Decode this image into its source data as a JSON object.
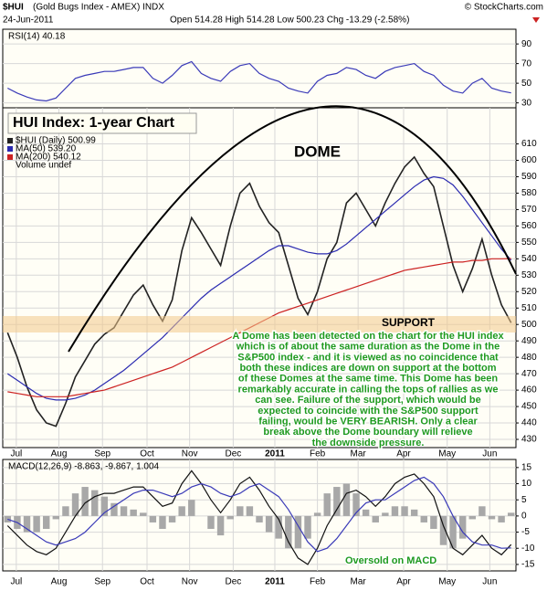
{
  "header": {
    "symbol": "$HUI",
    "name": "(Gold Bugs Index - AMEX) INDX",
    "date": "24-Jun-2011",
    "quote": "Open 514.28  High 514.28  Low 500.23  Chg -13.29 (-2.58%)",
    "credit": "© StockCharts.com"
  },
  "annotations": {
    "title": "HUI Index: 1-year Chart",
    "dome": "DOME",
    "support": "SUPPORT",
    "oversold": "Oversold on MACD",
    "text": [
      "A Dome has been detected on the chart for the HUI index",
      "which is of about the same duration as the Dome in the",
      "S&P500 index - and it is viewed as no coincidence that",
      "both these indices are down on support at the bottom",
      "of these Domes at the same time. This Dome has been",
      "remarkably accurate in calling the tops of rallies as we",
      "can see. Failure of the support, which would be",
      "expected to coincide with the S&P500 support",
      "failing, would be VERY BEARISH. Only a clear",
      "break above the Dome boundary will relieve",
      "the downside pressure."
    ]
  },
  "chart_data": [
    {
      "type": "line",
      "label": "RSI(14) 40.18",
      "xlim": [
        -0.5,
        52.5
      ],
      "ylim": [
        25,
        105
      ],
      "yticks": [
        30,
        50,
        70,
        90
      ],
      "grid": true,
      "series": [
        {
          "name": "RSI(14)",
          "color": "#3a3ab8",
          "values": [
            45,
            40,
            36,
            33,
            32,
            35,
            45,
            55,
            58,
            60,
            62,
            62,
            64,
            66,
            66,
            55,
            50,
            58,
            68,
            72,
            60,
            55,
            52,
            62,
            68,
            70,
            60,
            55,
            52,
            45,
            42,
            40,
            52,
            58,
            60,
            66,
            64,
            58,
            55,
            62,
            66,
            68,
            70,
            62,
            58,
            48,
            42,
            40,
            50,
            55,
            45,
            42,
            40.18
          ]
        }
      ]
    },
    {
      "type": "line",
      "xlim": [
        -0.5,
        52.5
      ],
      "ylim": [
        425,
        632
      ],
      "yticks": [
        430,
        440,
        450,
        460,
        470,
        480,
        490,
        500,
        510,
        520,
        530,
        540,
        550,
        560,
        570,
        580,
        590,
        600,
        610
      ],
      "grid": true,
      "xticks": [
        {
          "value": 0.9,
          "label": "Jul"
        },
        {
          "value": 5.3,
          "label": "Aug"
        },
        {
          "value": 9.8,
          "label": "Sep"
        },
        {
          "value": 14.4,
          "label": "Oct"
        },
        {
          "value": 18.8,
          "label": "Nov"
        },
        {
          "value": 23.3,
          "label": "Dec"
        },
        {
          "value": 27.6,
          "label": "2011"
        },
        {
          "value": 32,
          "label": "Feb"
        },
        {
          "value": 36.2,
          "label": "Mar"
        },
        {
          "value": 40.9,
          "label": "Apr"
        },
        {
          "value": 45.4,
          "label": "May"
        },
        {
          "value": 49.8,
          "label": "Jun"
        }
      ],
      "series": [
        {
          "name": "$HUI (Daily) 500.99",
          "color": "#222222",
          "values": [
            495,
            480,
            462,
            448,
            440,
            438,
            452,
            468,
            478,
            488,
            494,
            498,
            508,
            518,
            524,
            512,
            502,
            515,
            545,
            565,
            556,
            546,
            536,
            560,
            580,
            586,
            572,
            562,
            556,
            536,
            516,
            506,
            520,
            540,
            550,
            574,
            580,
            570,
            560,
            574,
            586,
            596,
            602,
            592,
            584,
            560,
            536,
            520,
            534,
            552,
            530,
            512,
            501
          ]
        },
        {
          "name": "MA(50) 539.20",
          "color": "#2a2ab0",
          "values": [
            470,
            466,
            462,
            458,
            455,
            454,
            454,
            455,
            457,
            460,
            464,
            468,
            472,
            477,
            482,
            487,
            492,
            498,
            504,
            510,
            516,
            521,
            525,
            529,
            533,
            537,
            541,
            545,
            548,
            548,
            546,
            544,
            543,
            543,
            545,
            549,
            554,
            559,
            564,
            569,
            574,
            579,
            584,
            588,
            590,
            589,
            585,
            578,
            570,
            562,
            554,
            546,
            539.2
          ]
        },
        {
          "name": "MA(200) 540.12",
          "color": "#cc2222",
          "values": [
            459,
            458,
            457,
            456,
            456,
            456,
            456,
            457,
            458,
            459,
            460,
            462,
            464,
            466,
            468,
            470,
            472,
            474,
            477,
            480,
            483,
            486,
            489,
            492,
            495,
            498,
            501,
            504,
            507,
            509,
            511,
            513,
            515,
            517,
            519,
            521,
            523,
            525,
            527,
            529,
            531,
            533,
            534,
            535,
            536,
            537,
            538,
            538,
            539,
            539,
            540,
            540,
            540.12
          ]
        }
      ],
      "legend_extra": "Volume undef"
    },
    {
      "type": "line",
      "label": "MACD(12,26,9) -8.863, -9.867, 1.004",
      "xlim": [
        -0.5,
        52.5
      ],
      "ylim": [
        -17,
        17.5
      ],
      "yticks": [
        15,
        10,
        5,
        0,
        -5,
        -10,
        -15
      ],
      "grid": true,
      "xticks": [
        {
          "value": 0.9,
          "label": "Jul"
        },
        {
          "value": 5.3,
          "label": "Aug"
        },
        {
          "value": 9.8,
          "label": "Sep"
        },
        {
          "value": 14.4,
          "label": "Oct"
        },
        {
          "value": 18.8,
          "label": "Nov"
        },
        {
          "value": 23.3,
          "label": "Dec"
        },
        {
          "value": 27.6,
          "label": "2011"
        },
        {
          "value": 32,
          "label": "Feb"
        },
        {
          "value": 36.2,
          "label": "Mar"
        },
        {
          "value": 40.9,
          "label": "Apr"
        },
        {
          "value": 45.4,
          "label": "May"
        },
        {
          "value": 49.8,
          "label": "Jun"
        }
      ],
      "series": [
        {
          "type": "bar",
          "color": "#a8a8a8",
          "values": [
            -2,
            -4,
            -5,
            -5,
            -4,
            -1,
            3,
            7,
            9,
            8,
            6,
            4,
            3,
            2,
            1,
            -2,
            -4,
            -2,
            3,
            5,
            0,
            -4,
            -6,
            -1,
            3,
            3,
            -2,
            -5,
            -7,
            -10,
            -10,
            -7,
            1,
            7,
            9,
            10,
            7,
            2,
            -2,
            1,
            3,
            3,
            2,
            -2,
            -4,
            -9,
            -10,
            -7,
            -1,
            3,
            -1,
            -2,
            1.004
          ]
        },
        {
          "type": "line",
          "color": "#111111",
          "values": [
            -3,
            -6,
            -9,
            -11,
            -12,
            -10,
            -5,
            0,
            4,
            6,
            7,
            7,
            8,
            9,
            9,
            6,
            3,
            4,
            10,
            14,
            10,
            5,
            1,
            5,
            10,
            12,
            8,
            3,
            -1,
            -8,
            -13,
            -15,
            -10,
            -3,
            2,
            7,
            8,
            6,
            3,
            6,
            10,
            12,
            13,
            10,
            6,
            -3,
            -10,
            -12,
            -9,
            -6,
            -10,
            -12,
            -8.863
          ]
        },
        {
          "type": "line",
          "color": "#3a3ab8",
          "values": [
            -1,
            -2,
            -4,
            -6,
            -8,
            -9,
            -8,
            -7,
            -5,
            -2,
            1,
            3,
            5,
            7,
            8,
            8,
            7,
            6,
            7,
            9,
            10,
            9,
            7,
            6,
            7,
            9,
            10,
            8,
            6,
            2,
            -3,
            -8,
            -11,
            -10,
            -7,
            -3,
            1,
            4,
            5,
            5,
            7,
            9,
            11,
            12,
            10,
            6,
            0,
            -5,
            -8,
            -9,
            -9,
            -10,
            -9.867
          ]
        }
      ]
    }
  ]
}
